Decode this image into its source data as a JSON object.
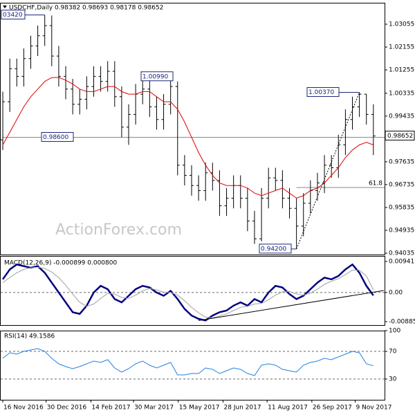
{
  "chart_data": [
    {
      "type": "ohlc",
      "title": "USDCHF,Daily 0.98382 0.98693 0.98178 0.98652",
      "watermark": "ActionForex.com",
      "color": "#000000",
      "xlim": [
        -0.4,
        54.6
      ],
      "ylim": [
        0.9398,
        1.039
      ],
      "yticks": [
        0.94035,
        0.94935,
        0.95835,
        0.96735,
        0.97635,
        0.99435,
        1.00335,
        1.01255,
        1.02155,
        1.03055
      ],
      "x": [
        0,
        1,
        2,
        3,
        4,
        5,
        6,
        7,
        8,
        9,
        10,
        11,
        12,
        13,
        14,
        15,
        16,
        17,
        18,
        19,
        20,
        21,
        22,
        23,
        24,
        25,
        26,
        27,
        28,
        29,
        30,
        31,
        32,
        33,
        34,
        35,
        36,
        37,
        38,
        39,
        40,
        41,
        42,
        43,
        44,
        45,
        46,
        47,
        48,
        49,
        50,
        51,
        52,
        53
      ],
      "open": [
        0.985,
        1.0,
        1.013,
        1.01,
        1.017,
        1.022,
        1.026,
        1.03,
        1.018,
        1.01,
        1.005,
        0.999,
        1.001,
        1.006,
        1.01,
        1.008,
        1.012,
        1.002,
        0.99,
        0.995,
        1.003,
        1.005,
        0.998,
        0.993,
        0.999,
        1.006,
        0.975,
        0.971,
        0.967,
        0.965,
        0.972,
        0.969,
        0.959,
        0.962,
        0.967,
        0.962,
        0.953,
        0.946,
        0.962,
        0.97,
        0.969,
        0.962,
        0.958,
        0.951,
        0.96,
        0.965,
        0.968,
        0.975,
        0.974,
        0.983,
        0.993,
        0.998,
        1.003,
        0.995
      ],
      "high": [
        1.004,
        1.017,
        1.017,
        1.021,
        1.026,
        1.03,
        1.0342,
        1.034,
        1.022,
        1.014,
        1.009,
        1.005,
        1.01,
        1.014,
        1.014,
        1.016,
        1.016,
        1.006,
        0.999,
        1.007,
        1.0099,
        1.009,
        1.002,
        1.003,
        1.0099,
        1.008,
        0.979,
        0.975,
        0.971,
        0.976,
        0.976,
        0.973,
        0.966,
        0.971,
        0.971,
        0.966,
        0.957,
        0.966,
        0.974,
        0.974,
        0.973,
        0.966,
        0.962,
        0.964,
        0.969,
        0.972,
        0.979,
        0.979,
        0.987,
        0.997,
        1.002,
        1.0037,
        1.003,
        0.999
      ],
      "low": [
        0.981,
        0.996,
        1.006,
        1.006,
        1.013,
        1.018,
        1.022,
        1.014,
        1.006,
        1.001,
        0.995,
        0.995,
        0.997,
        1.002,
        1.004,
        1.004,
        0.998,
        0.986,
        0.983,
        0.991,
        0.999,
        0.994,
        0.989,
        0.989,
        0.995,
        0.971,
        0.967,
        0.963,
        0.961,
        0.961,
        0.965,
        0.955,
        0.955,
        0.958,
        0.958,
        0.949,
        0.944,
        0.945,
        0.958,
        0.965,
        0.958,
        0.954,
        0.942,
        0.947,
        0.956,
        0.961,
        0.964,
        0.97,
        0.97,
        0.979,
        0.989,
        0.994,
        0.991,
        0.979
      ],
      "close": [
        1.0,
        1.013,
        1.01,
        1.017,
        1.022,
        1.026,
        1.03,
        1.018,
        1.01,
        1.005,
        0.999,
        1.001,
        1.006,
        1.01,
        1.008,
        1.012,
        1.002,
        0.99,
        0.995,
        1.003,
        1.005,
        0.998,
        0.993,
        0.999,
        1.006,
        0.975,
        0.971,
        0.967,
        0.965,
        0.972,
        0.969,
        0.959,
        0.962,
        0.967,
        0.962,
        0.953,
        0.946,
        0.962,
        0.97,
        0.969,
        0.962,
        0.958,
        0.951,
        0.96,
        0.965,
        0.968,
        0.975,
        0.974,
        0.983,
        0.993,
        0.998,
        1.003,
        0.995,
        0.98652
      ],
      "ma": {
        "color": "#e00000",
        "values": [
          0.983,
          0.988,
          0.993,
          0.998,
          1.002,
          1.005,
          1.008,
          1.0095,
          1.0096,
          1.0085,
          1.007,
          1.005,
          1.004,
          1.004,
          1.005,
          1.006,
          1.006,
          1.004,
          1.003,
          1.003,
          1.004,
          1.004,
          1.002,
          1.0,
          1.0,
          0.997,
          0.992,
          0.986,
          0.98,
          0.975,
          0.971,
          0.968,
          0.967,
          0.967,
          0.967,
          0.966,
          0.964,
          0.963,
          0.964,
          0.965,
          0.966,
          0.964,
          0.962,
          0.963,
          0.965,
          0.966,
          0.968,
          0.971,
          0.974,
          0.978,
          0.981,
          0.983,
          0.984,
          0.983
        ]
      },
      "last_price": 0.98652,
      "annotations": [
        {
          "label": "03420",
          "x": 6,
          "value": 1.0342
        },
        {
          "label": "1.00990",
          "x": 24,
          "value": 1.0099
        },
        {
          "label": "0.98600",
          "x": 0,
          "value": 0.986,
          "line": true
        },
        {
          "label": "1.00370",
          "x": 51,
          "value": 1.0037
        },
        {
          "label": "0.94200",
          "x": 42,
          "value": 0.942
        },
        {
          "label": "61.8",
          "x": 42,
          "value": 0.9662,
          "line": true
        }
      ],
      "trendline": {
        "x": [
          42,
          51
        ],
        "values": [
          0.942,
          1.0037
        ],
        "dashed": true
      }
    },
    {
      "type": "line",
      "title": "MACD(12,26,9) -0.000899 0.000800",
      "xlim": [
        -0.4,
        54.6
      ],
      "ylim": [
        -0.0099,
        0.0111
      ],
      "yticks": [
        0.009411,
        {
          "value": 0,
          "label": "0.00"
        },
        -0.008852
      ],
      "zero_line": true,
      "lines": [
        {
          "color": "#000080",
          "values": [
            0.004,
            0.007,
            0.0085,
            0.008,
            0.0075,
            0.008,
            0.006,
            0.003,
            0.0,
            -0.003,
            -0.006,
            -0.0065,
            -0.004,
            0.0,
            0.002,
            0.001,
            -0.002,
            -0.003,
            -0.001,
            0.001,
            0.002,
            0.0015,
            0.0,
            -0.001,
            0.0005,
            -0.002,
            -0.005,
            -0.007,
            -0.008,
            -0.0085,
            -0.007,
            -0.006,
            -0.0055,
            -0.004,
            -0.003,
            -0.004,
            -0.002,
            -0.003,
            0.0,
            0.002,
            0.0015,
            -0.0005,
            -0.002,
            -0.001,
            0.001,
            0.003,
            0.0045,
            0.004,
            0.005,
            0.007,
            0.0085,
            0.006,
            0.002,
            -0.000899
          ]
        },
        {
          "color": "#a0a0a0",
          "values": [
            0.003,
            0.0045,
            0.006,
            0.007,
            0.0075,
            0.0077,
            0.0073,
            0.0062,
            0.0045,
            0.0022,
            -0.0005,
            -0.003,
            -0.0042,
            -0.0035,
            -0.0018,
            -0.0003,
            -0.0005,
            -0.0015,
            -0.0018,
            -0.0008,
            0.0005,
            0.0012,
            0.0008,
            0.0001,
            0.0,
            -0.0008,
            -0.0025,
            -0.0045,
            -0.0062,
            -0.0075,
            -0.0077,
            -0.0072,
            -0.0065,
            -0.0055,
            -0.0045,
            -0.0042,
            -0.0035,
            -0.0033,
            -0.0022,
            -0.0008,
            0.0002,
            0.0003,
            -0.0005,
            -0.0008,
            -0.0002,
            0.001,
            0.0025,
            0.0034,
            0.0042,
            0.0054,
            0.0068,
            0.0068,
            0.005,
            0.0008
          ]
        }
      ],
      "trendline": {
        "x": [
          28,
          54.5
        ],
        "values": [
          -0.0085,
          0.0006
        ],
        "dashed": false
      }
    },
    {
      "type": "line",
      "title": "RSI(14) 49.1586",
      "xlim": [
        -0.4,
        54.6
      ],
      "ylim": [
        0,
        100
      ],
      "yticks": [
        100,
        70,
        30
      ],
      "grid": true,
      "lines": [
        {
          "color": "#2080e0",
          "values": [
            60,
            68,
            66,
            70,
            72,
            74,
            70,
            60,
            52,
            48,
            45,
            48,
            52,
            56,
            54,
            58,
            46,
            40,
            45,
            52,
            56,
            50,
            46,
            50,
            54,
            36,
            36,
            38,
            38,
            46,
            44,
            38,
            42,
            46,
            44,
            38,
            35,
            50,
            52,
            50,
            44,
            42,
            40,
            50,
            54,
            56,
            60,
            58,
            62,
            66,
            70,
            68,
            52,
            49.1586
          ]
        }
      ],
      "xticks": [
        {
          "value": 0,
          "label": "16 Nov 2016"
        },
        {
          "value": 6.2,
          "label": "30 Dec 2016"
        },
        {
          "value": 12.6,
          "label": "14 Feb 2017"
        },
        {
          "value": 18.7,
          "label": "30 Mar 2017"
        },
        {
          "value": 25.1,
          "label": "15 May 2017"
        },
        {
          "value": 31.5,
          "label": "28 Jun 2017"
        },
        {
          "value": 37.8,
          "label": "11 Aug 2017"
        },
        {
          "value": 44.2,
          "label": "26 Sep 2017"
        },
        {
          "value": 50.4,
          "label": "9 Nov 2017"
        }
      ]
    }
  ]
}
